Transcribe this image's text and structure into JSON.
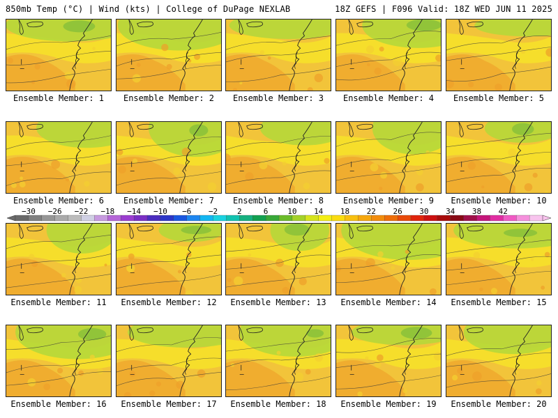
{
  "header": {
    "left": "850mb Temp (°C) | Wind (kts) | College of DuPage NEXLAB",
    "right": "18Z GEFS | F096 Valid: 18Z WED JUN 11 2025"
  },
  "panels": [
    {
      "label": "Ensemble Member: 1"
    },
    {
      "label": "Ensemble Member: 2"
    },
    {
      "label": "Ensemble Member: 3"
    },
    {
      "label": "Ensemble Member: 4"
    },
    {
      "label": "Ensemble Member: 5"
    },
    {
      "label": "Ensemble Member: 6"
    },
    {
      "label": "Ensemble Member: 7"
    },
    {
      "label": "Ensemble Member: 8"
    },
    {
      "label": "Ensemble Member: 9"
    },
    {
      "label": "Ensemble Member: 10"
    },
    {
      "label": "Ensemble Member: 11"
    },
    {
      "label": "Ensemble Member: 12"
    },
    {
      "label": "Ensemble Member: 13"
    },
    {
      "label": "Ensemble Member: 14"
    },
    {
      "label": "Ensemble Member: 15"
    },
    {
      "label": "Ensemble Member: 16"
    },
    {
      "label": "Ensemble Member: 17"
    },
    {
      "label": "Ensemble Member: 18"
    },
    {
      "label": "Ensemble Member: 19"
    },
    {
      "label": "Ensemble Member: 20"
    }
  ],
  "colorbar": {
    "tick_labels": [
      "−30",
      "−26",
      "−22",
      "−18",
      "−14",
      "−10",
      "−6",
      "−2",
      "2",
      "6",
      "10",
      "14",
      "18",
      "22",
      "26",
      "30",
      "34",
      "38",
      "42"
    ],
    "colors": [
      "#6a6a6a",
      "#808080",
      "#969696",
      "#aaaaaa",
      "#bcbcbc",
      "#d0d0e4",
      "#c79adf",
      "#b566d8",
      "#9b3ed0",
      "#7a2fc4",
      "#4b2dbf",
      "#2c36c8",
      "#1a57e0",
      "#1e86f0",
      "#13b6f2",
      "#1ad2e0",
      "#12c2b0",
      "#16b080",
      "#12a050",
      "#38a838",
      "#6cbc2a",
      "#a4d22a",
      "#d6e41e",
      "#f4ee14",
      "#fadc10",
      "#f8c010",
      "#f6a70e",
      "#f28c0c",
      "#ee6e0a",
      "#e84a0a",
      "#e0240c",
      "#cc1010",
      "#a80c0c",
      "#880a16",
      "#a0104a",
      "#c4167a",
      "#e02ea2",
      "#f05ac4",
      "#f590dc",
      "#f8c4ee"
    ]
  }
}
